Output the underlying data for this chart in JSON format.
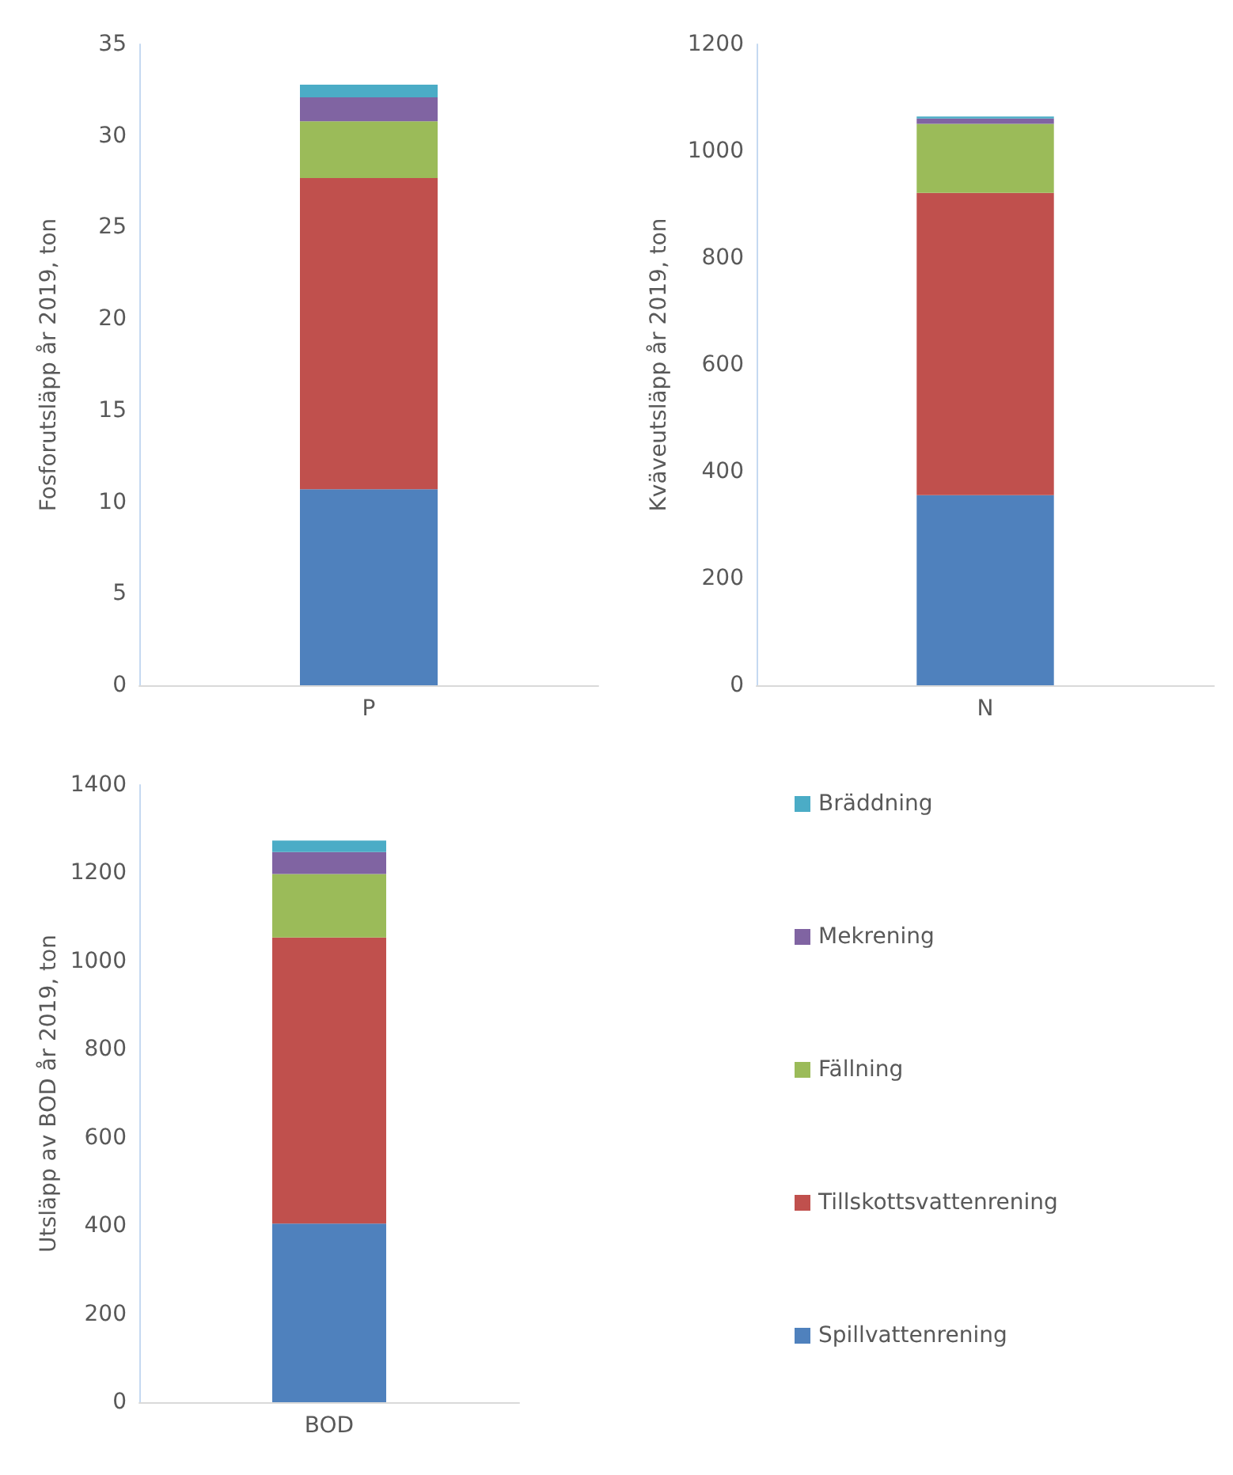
{
  "chart_data": [
    {
      "type": "bar",
      "stacked": true,
      "ylabel": "Fosforutsläpp år 2019, ton",
      "categories": [
        "P"
      ],
      "ylim": [
        0,
        35
      ],
      "yticks": [
        0,
        5,
        10,
        15,
        20,
        25,
        30,
        35
      ],
      "grid": false,
      "legend": false,
      "series": [
        {
          "color": "#4f81bd",
          "values": [
            10.7
          ]
        },
        {
          "color": "#c0504d",
          "values": [
            17.0
          ]
        },
        {
          "color": "#9bbb59",
          "values": [
            3.1
          ]
        },
        {
          "color": "#8064a2",
          "values": [
            1.3
          ]
        },
        {
          "color": "#4bacc6",
          "values": [
            0.7
          ]
        }
      ]
    },
    {
      "type": "bar",
      "stacked": true,
      "ylabel": "Kväveutsläpp år 2019, ton",
      "categories": [
        "N"
      ],
      "ylim": [
        0,
        1200
      ],
      "yticks": [
        0,
        200,
        400,
        600,
        800,
        1000,
        1200
      ],
      "grid": false,
      "legend": false,
      "series": [
        {
          "color": "#4f81bd",
          "values": [
            356
          ]
        },
        {
          "color": "#c0504d",
          "values": [
            566
          ]
        },
        {
          "color": "#9bbb59",
          "values": [
            129
          ]
        },
        {
          "color": "#8064a2",
          "values": [
            10
          ]
        },
        {
          "color": "#4bacc6",
          "values": [
            4
          ]
        }
      ]
    },
    {
      "type": "bar",
      "stacked": true,
      "ylabel": "Utsläpp av BOD år 2019, ton",
      "categories": [
        "BOD"
      ],
      "ylim": [
        0,
        1400
      ],
      "yticks": [
        0,
        200,
        400,
        600,
        800,
        1000,
        1200,
        1400
      ],
      "grid": false,
      "legend": "right",
      "series": [
        {
          "name": "Spillvattenrening",
          "color": "#4f81bd",
          "values": [
            405
          ]
        },
        {
          "name": "Tillskottsvattenrening",
          "color": "#c0504d",
          "values": [
            649
          ]
        },
        {
          "name": "Fällning",
          "color": "#9bbb59",
          "values": [
            144
          ]
        },
        {
          "name": "Mekrening",
          "color": "#8064a2",
          "values": [
            50
          ]
        },
        {
          "name": "Bräddning",
          "color": "#4bacc6",
          "values": [
            26
          ]
        }
      ]
    }
  ]
}
